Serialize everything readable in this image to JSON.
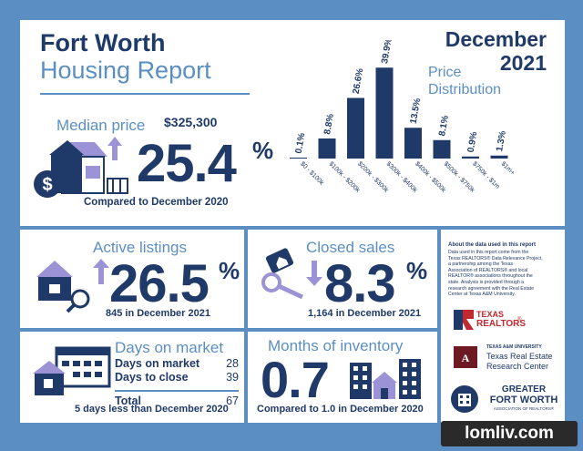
{
  "header": {
    "city": "Fort Worth",
    "subtitle": "Housing Report",
    "month": "December",
    "year": "2021",
    "chart_title_line1": "Price",
    "chart_title_line2": "Distribution"
  },
  "median_price": {
    "label": "Median price",
    "value": "$325,300",
    "change": "25.4",
    "pct_sign": "%",
    "caption": "Compared to December 2020"
  },
  "active_listings": {
    "label": "Active listings",
    "change": "26.5",
    "pct_sign": "%",
    "caption": "845 in December 2021"
  },
  "closed_sales": {
    "label": "Closed sales",
    "change": "8.3",
    "pct_sign": "%",
    "caption": "1,164 in December 2021"
  },
  "days_on_market": {
    "label": "Days on market",
    "rows": [
      {
        "name": "Days on market",
        "value": "28"
      },
      {
        "name": "Days to close",
        "value": "39"
      }
    ],
    "total_label": "Total",
    "total_value": "67",
    "caption": "5 days less than December 2020"
  },
  "months_inventory": {
    "label": "Months of inventory",
    "value": "0.7",
    "caption": "Compared to 1.0 in December 2020"
  },
  "note": {
    "title": "About the data used in this report",
    "body": [
      "Data used in this report come from the",
      "Texas REALTORS® Data Relevance Project,",
      "a partnership among the Texas",
      "Association of REALTORS® and local",
      "REALTOR® associations throughout the",
      "state. Analysis is provided through a",
      "research agreement with the Real Estate",
      "Center at Texas A&M University."
    ]
  },
  "logos": {
    "tr_line1": "TEXAS",
    "tr_line2": "REALTORS",
    "tr_mark": "®",
    "tamu_small": "TEXAS A&M UNIVERSITY",
    "tamu_line1": "Texas Real Estate",
    "tamu_line2": "Research Center",
    "gfw_line1": "GREATER",
    "gfw_line2": "FORT WORTH",
    "gfw_line3": "ASSOCIATION OF REALTORS®"
  },
  "watermark": "lomliv.com",
  "colors": {
    "navy": "#1f3a68",
    "blue": "#5b8fc4",
    "lavender": "#9b93d6"
  },
  "chart_data": {
    "type": "bar",
    "title": "Price Distribution",
    "categories": [
      "$0 - $100k",
      "$100k - $200k",
      "$200k - $300k",
      "$300k - $400k",
      "$400k - $500k",
      "$500k - $750k",
      "$750k - $1m",
      "$1m+"
    ],
    "values": [
      0.1,
      8.8,
      26.6,
      39.9,
      13.5,
      8.1,
      0.9,
      1.3
    ],
    "value_labels": [
      "0.1%",
      "8.8%",
      "26.6%",
      "39.9%",
      "13.5%",
      "8.1%",
      "0.9%",
      "1.3%"
    ],
    "ylim": [
      0,
      40
    ]
  }
}
